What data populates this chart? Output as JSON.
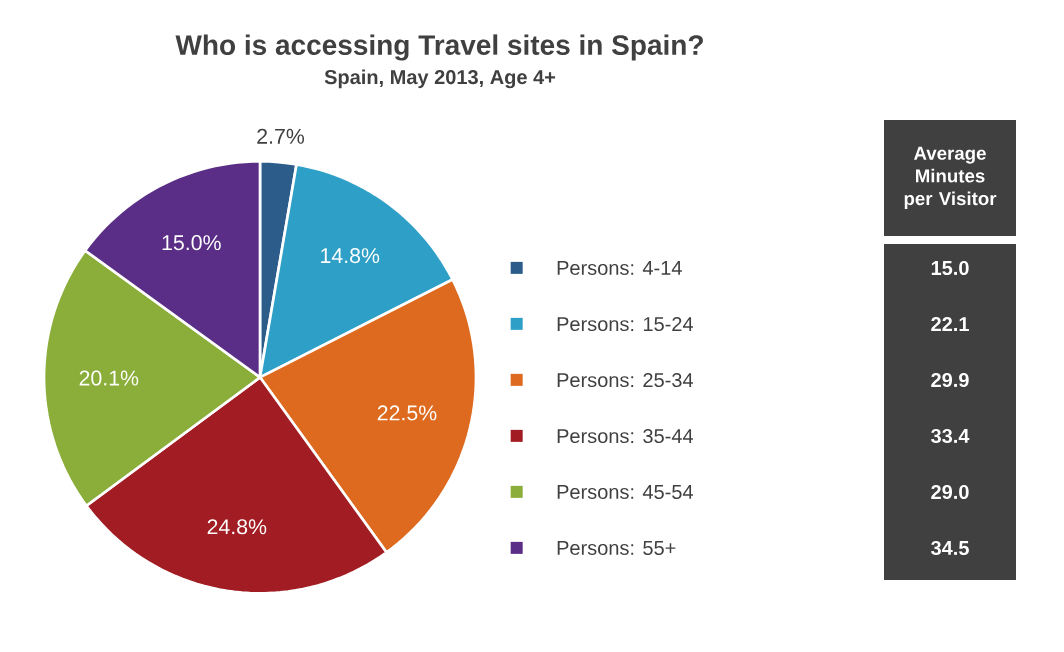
{
  "chart_data": [
    {
      "type": "pie",
      "title": "Who is accessing Travel sites in Spain?",
      "subtitle": "Spain, May 2013, Age 4+",
      "categories": [
        "Persons: 4-14",
        "Persons: 15-24",
        "Persons: 25-34",
        "Persons: 35-44",
        "Persons: 45-54",
        "Persons: 55+"
      ],
      "values": [
        2.7,
        14.8,
        22.5,
        24.8,
        20.1,
        15.0
      ],
      "value_labels": [
        "2.7%",
        "14.8%",
        "22.5%",
        "24.8%",
        "20.1%",
        "15.0%"
      ],
      "colors": [
        "#2c5d8a",
        "#2e9fc6",
        "#dd6a1f",
        "#a21d23",
        "#8bae3a",
        "#5a2e86"
      ],
      "legend": "right"
    },
    {
      "type": "other",
      "title": "Average Minutes per Visitor",
      "annotations": [
        "15.0",
        "22.1",
        "29.9",
        "33.4",
        "29.0",
        "34.5"
      ]
    }
  ]
}
